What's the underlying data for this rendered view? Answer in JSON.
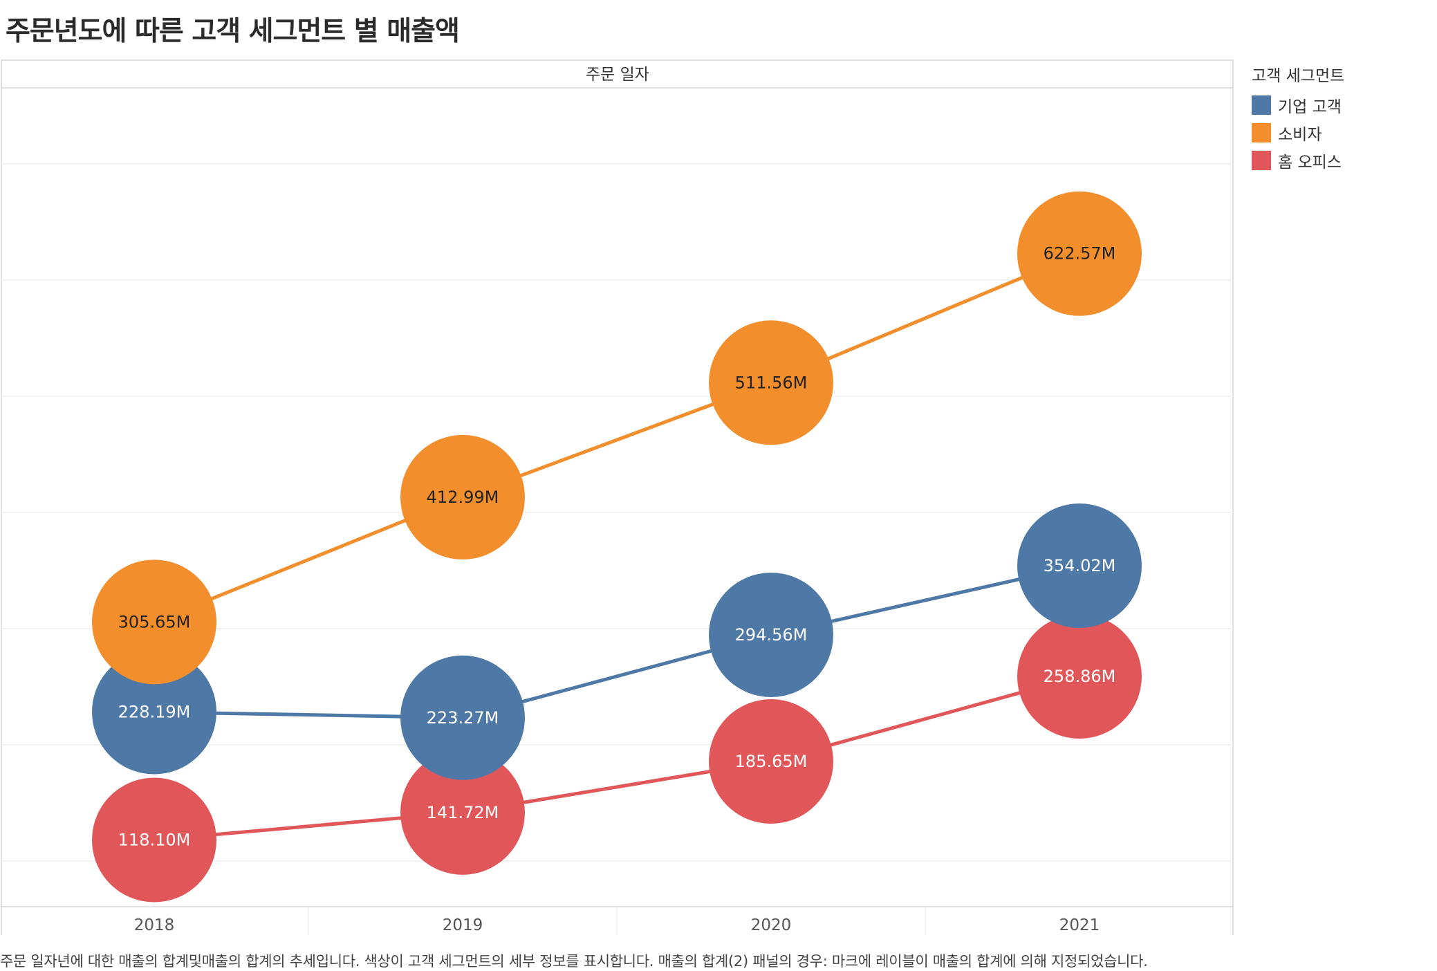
{
  "title": "주문년도에 따른 고객 세그먼트 별 매출액",
  "caption": "주문 일자년에 대한 매출의 합계및매출의 합계의 추세입니다. 색상이 고객 세그먼트의 세부 정보를 표시합니다. 매출의 합계(2) 패널의 경우: 마크에 레이블이 매출의 합계에 의해 지정되었습니다.",
  "legend": {
    "title": "고객 세그먼트",
    "items": [
      {
        "label": "기업 고객",
        "color": "#4e79a7"
      },
      {
        "label": "소비자",
        "color": "#f28e2b"
      },
      {
        "label": "홈 오피스",
        "color": "#e15759"
      }
    ]
  },
  "chart_data": {
    "type": "line",
    "column_header": "주문 일자",
    "categories": [
      "2018",
      "2019",
      "2020",
      "2021"
    ],
    "ylim": [
      0,
      700
    ],
    "grid": true,
    "legend_position": "right",
    "series": [
      {
        "name": "소비자",
        "color": "#f28e2b",
        "values": [
          305.65,
          412.99,
          511.56,
          622.57
        ],
        "labels": [
          "305.65M",
          "412.99M",
          "511.56M",
          "622.57M"
        ],
        "label_color": "#222222"
      },
      {
        "name": "기업 고객",
        "color": "#4e79a7",
        "values": [
          228.19,
          223.27,
          294.56,
          354.02
        ],
        "labels": [
          "228.19M",
          "223.27M",
          "294.56M",
          "354.02M"
        ],
        "label_color": "#ffffff"
      },
      {
        "name": "홈 오피스",
        "color": "#e15759",
        "values": [
          118.1,
          141.72,
          185.65,
          258.86
        ],
        "labels": [
          "118.10M",
          "141.72M",
          "185.65M",
          "258.86M"
        ],
        "label_color": "#ffffff"
      }
    ],
    "draw_order": [
      "홈 오피스",
      "기업 고객",
      "소비자"
    ]
  }
}
